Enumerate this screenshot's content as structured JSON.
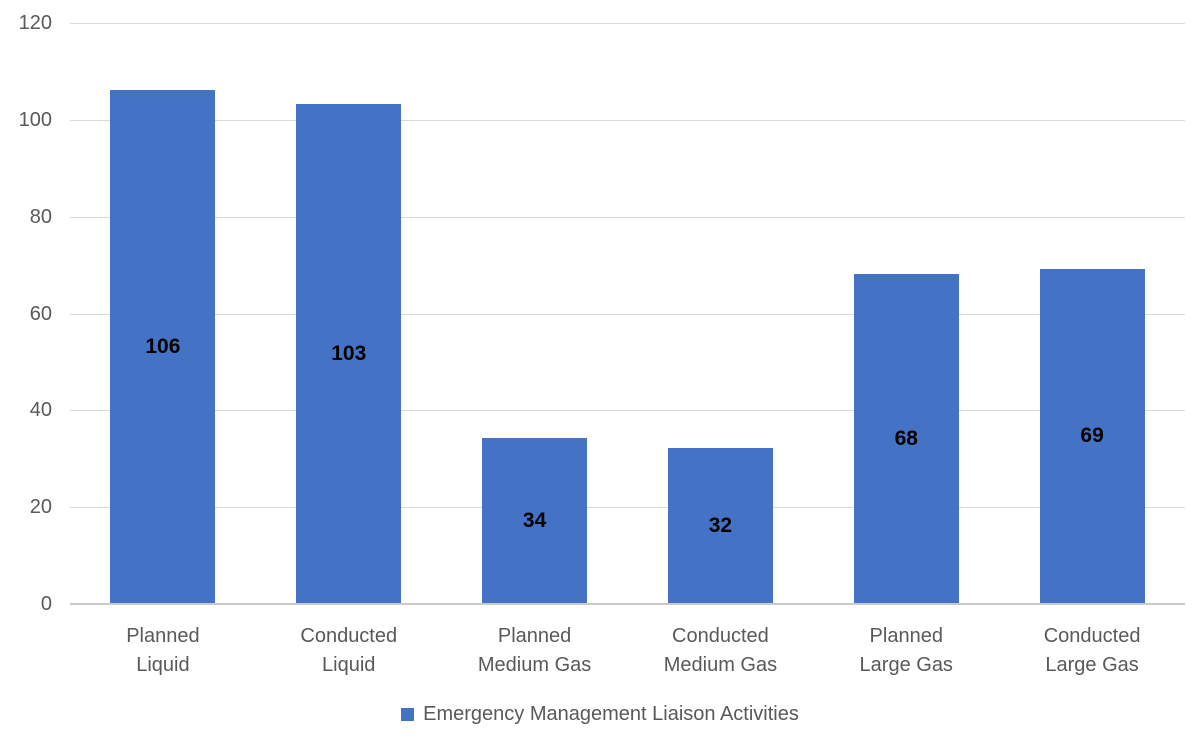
{
  "chart_data": {
    "type": "bar",
    "categories": [
      "Planned Liquid",
      "Conducted Liquid",
      "Planned Medium Gas",
      "Conducted Medium Gas",
      "Planned Large Gas",
      "Conducted Large Gas"
    ],
    "categories_lines": [
      [
        "Planned",
        "Liquid"
      ],
      [
        "Conducted",
        "Liquid"
      ],
      [
        "Planned",
        "Medium Gas"
      ],
      [
        "Conducted",
        "Medium Gas"
      ],
      [
        "Planned",
        "Large Gas"
      ],
      [
        "Conducted",
        "Large Gas"
      ]
    ],
    "values": [
      106,
      103,
      34,
      32,
      68,
      69
    ],
    "data_labels": [
      "106",
      "103",
      "34",
      "32",
      "68",
      "69"
    ],
    "series": [
      {
        "name": "Emergency Management Liaison Activities",
        "values": [
          106,
          103,
          34,
          32,
          68,
          69
        ]
      }
    ],
    "title": "",
    "xlabel": "",
    "ylabel": "",
    "ylim": [
      0,
      120
    ],
    "yticks": [
      0,
      20,
      40,
      60,
      80,
      100,
      120
    ],
    "grid": true,
    "legend_position": "bottom",
    "legend_label": "Emergency Management Liaison Activities",
    "colors": {
      "bar_fill": "#4472c4",
      "gridline": "#d9d9d9",
      "axis_text": "#595959",
      "data_label_text": "#000000",
      "legend_marker": "#4472c4"
    }
  }
}
